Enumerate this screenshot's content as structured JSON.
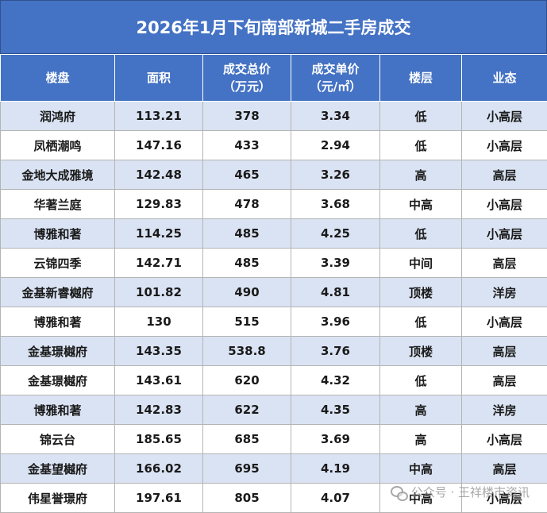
{
  "title": "2026年1月下旬南部新城二手房成交",
  "headers": [
    {
      "l1": "楼盘",
      "l2": ""
    },
    {
      "l1": "面积",
      "l2": ""
    },
    {
      "l1": "成交总价",
      "l2": "（万元）"
    },
    {
      "l1": "成交单价",
      "l2": "（元/㎡）"
    },
    {
      "l1": "楼层",
      "l2": ""
    },
    {
      "l1": "业态",
      "l2": ""
    }
  ],
  "rows": [
    [
      "润鸿府",
      "113.21",
      "378",
      "3.34",
      "低",
      "小高层"
    ],
    [
      "凤栖潮鸣",
      "147.16",
      "433",
      "2.94",
      "低",
      "小高层"
    ],
    [
      "金地大成雅境",
      "142.48",
      "465",
      "3.26",
      "高",
      "高层"
    ],
    [
      "华著兰庭",
      "129.83",
      "478",
      "3.68",
      "中高",
      "小高层"
    ],
    [
      "博雅和著",
      "114.25",
      "485",
      "4.25",
      "低",
      "小高层"
    ],
    [
      "云锦四季",
      "142.71",
      "485",
      "3.39",
      "中间",
      "高层"
    ],
    [
      "金基新睿樾府",
      "101.82",
      "490",
      "4.81",
      "顶楼",
      "洋房"
    ],
    [
      "博雅和著",
      "130",
      "515",
      "3.96",
      "低",
      "小高层"
    ],
    [
      "金基璟樾府",
      "143.35",
      "538.8",
      "3.76",
      "顶楼",
      "高层"
    ],
    [
      "金基璟樾府",
      "143.61",
      "620",
      "4.32",
      "低",
      "高层"
    ],
    [
      "博雅和著",
      "142.83",
      "622",
      "4.35",
      "高",
      "洋房"
    ],
    [
      "锦云台",
      "185.65",
      "685",
      "3.69",
      "高",
      "小高层"
    ],
    [
      "金基望樾府",
      "166.02",
      "695",
      "4.19",
      "中高",
      "高层"
    ],
    [
      "伟星誉璟府",
      "197.61",
      "805",
      "4.07",
      "中高",
      "小高层"
    ]
  ],
  "watermark": {
    "text": "公众号 · 王祥楼市资讯",
    "icon": "wechat-icon"
  },
  "colors": {
    "header": "#4472c4",
    "band": "#dae3f3"
  }
}
